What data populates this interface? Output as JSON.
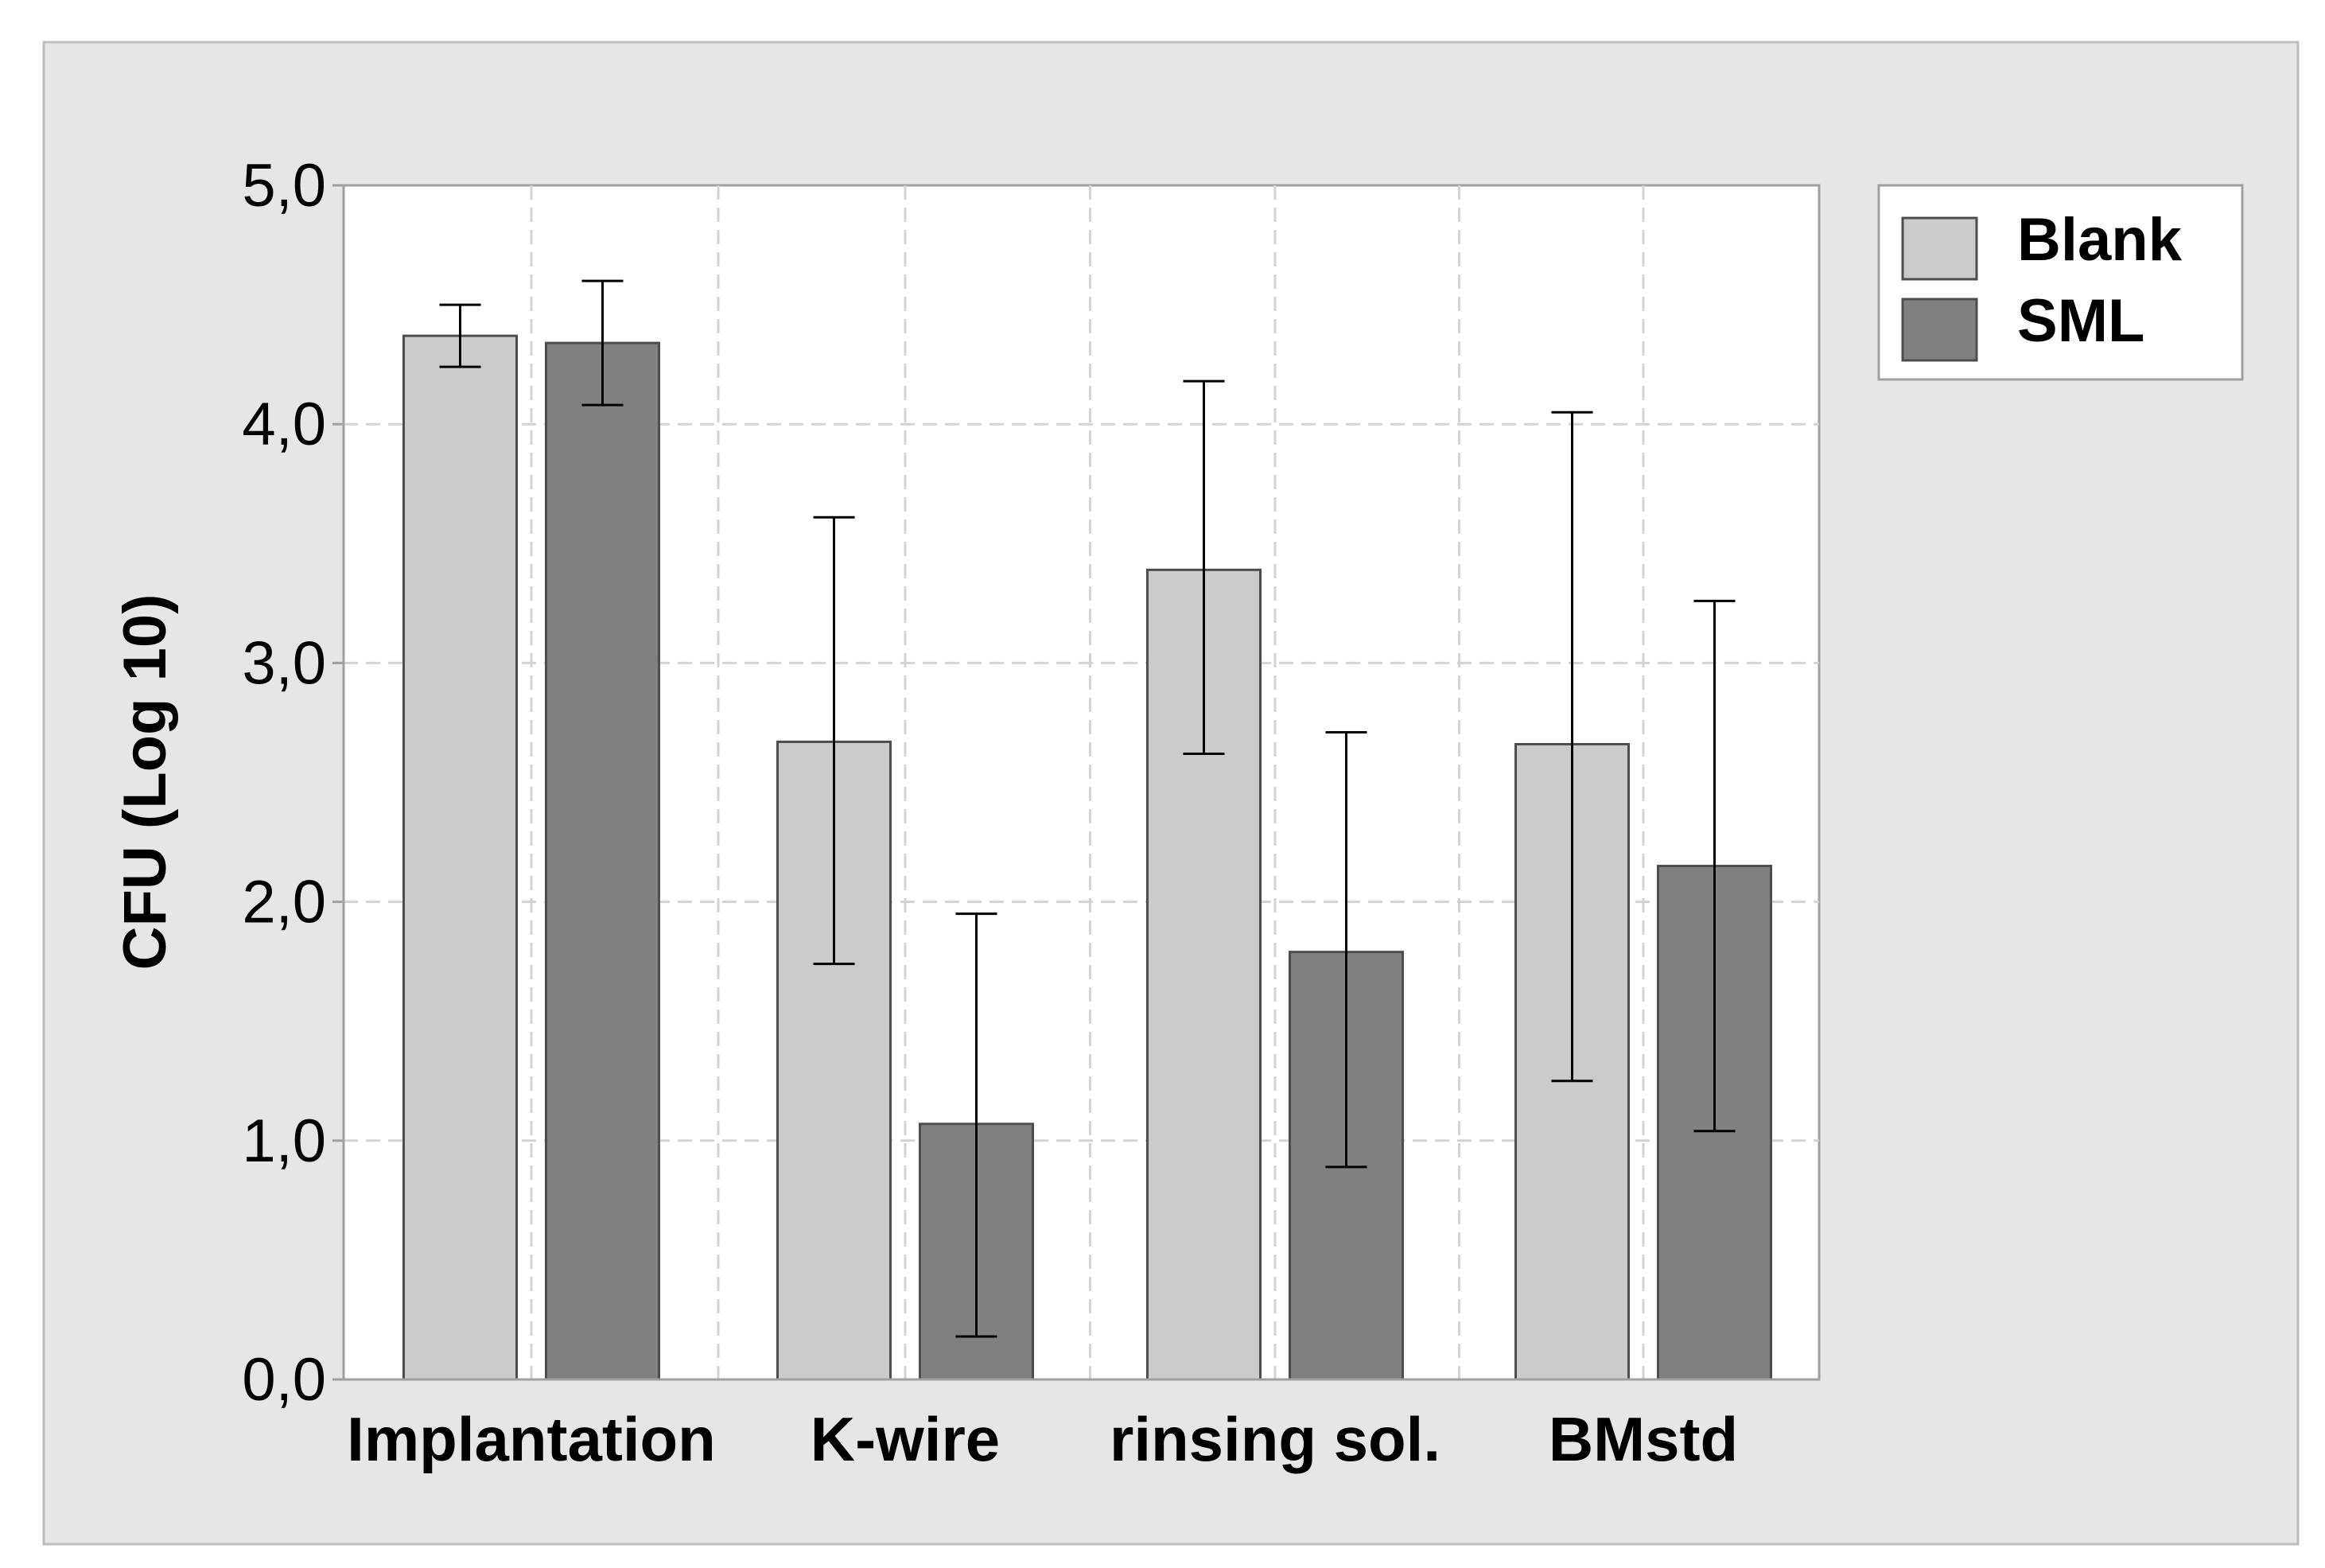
{
  "chart_data": {
    "type": "bar",
    "title": "",
    "xlabel": "",
    "ylabel": "CFU (Log 10)",
    "ylim": [
      0,
      5
    ],
    "yticks": [
      0,
      1,
      2,
      3,
      4,
      5
    ],
    "ytick_labels": [
      "0,0",
      "1,0",
      "2,0",
      "3,0",
      "4,0",
      "5,0"
    ],
    "categories": [
      "Implantation",
      "K-wire",
      "rinsing sol.",
      "BMstd"
    ],
    "grid": true,
    "legend_position": "top-right",
    "series": [
      {
        "name": "Blank",
        "color": "#cbcbcb",
        "values": [
          4.37,
          2.67,
          3.39,
          2.66
        ],
        "error_low": [
          4.24,
          1.74,
          2.62,
          1.25
        ],
        "error_high": [
          4.5,
          3.61,
          4.18,
          4.05
        ]
      },
      {
        "name": "SML",
        "color": "#808080",
        "values": [
          4.34,
          1.07,
          1.79,
          2.15
        ],
        "error_low": [
          4.08,
          0.18,
          0.89,
          1.04
        ],
        "error_high": [
          4.6,
          1.95,
          2.71,
          3.26
        ]
      }
    ]
  },
  "colors": {
    "background": "#e6e6e6",
    "plot_background": "#ffffff",
    "grid": "#d3d3d3",
    "axis": "#a0a0a0",
    "bar_edge": "#4d4d4d",
    "text": "#000000"
  }
}
